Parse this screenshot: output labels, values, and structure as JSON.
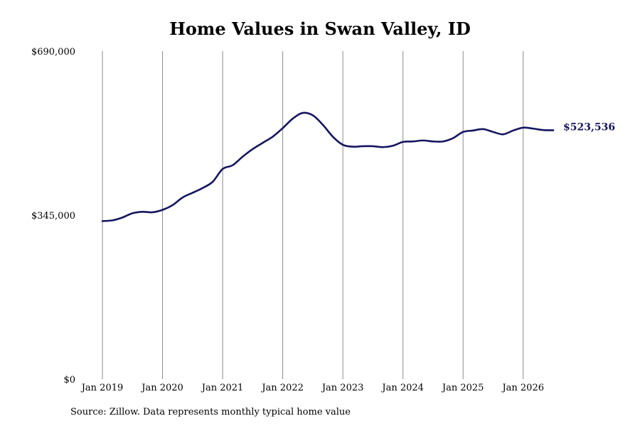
{
  "chart_data": {
    "type": "line",
    "title": "Home Values in Swan Valley, ID",
    "xlabel": "",
    "ylabel": "",
    "x_start": "2019-01",
    "x_end": "2026-07",
    "xlim": [
      "2019-01",
      "2026-07"
    ],
    "ylim": [
      0,
      690000
    ],
    "y_ticks": [
      "$0",
      "$345,000",
      "$690,000"
    ],
    "y_tick_values": [
      0,
      345000,
      690000
    ],
    "x_tick_labels": [
      "Jan 2019",
      "Jan 2020",
      "Jan 2021",
      "Jan 2022",
      "Jan 2023",
      "Jan 2024",
      "Jan 2025",
      "Jan 2026"
    ],
    "x_tick_dates": [
      "2019-01",
      "2020-01",
      "2021-01",
      "2022-01",
      "2023-01",
      "2024-01",
      "2025-01",
      "2026-01"
    ],
    "grid": "vertical",
    "line_color": "#151560",
    "end_label": "$523,536",
    "series": [
      {
        "name": "",
        "points": [
          [
            "2019-01",
            332500
          ],
          [
            "2019-03",
            334000
          ],
          [
            "2019-05",
            340000
          ],
          [
            "2019-07",
            349000
          ],
          [
            "2019-09",
            352000
          ],
          [
            "2019-11",
            351000
          ],
          [
            "2020-01",
            356000
          ],
          [
            "2020-03",
            366000
          ],
          [
            "2020-05",
            382000
          ],
          [
            "2020-07",
            392000
          ],
          [
            "2020-09",
            402000
          ],
          [
            "2020-11",
            415000
          ],
          [
            "2021-01",
            442000
          ],
          [
            "2021-03",
            450000
          ],
          [
            "2021-05",
            468000
          ],
          [
            "2021-07",
            484000
          ],
          [
            "2021-09",
            497000
          ],
          [
            "2021-11",
            510000
          ],
          [
            "2022-01",
            528000
          ],
          [
            "2022-03",
            548000
          ],
          [
            "2022-05",
            560000
          ],
          [
            "2022-07",
            555000
          ],
          [
            "2022-09",
            535000
          ],
          [
            "2022-11",
            510000
          ],
          [
            "2023-01",
            493000
          ],
          [
            "2023-03",
            489000
          ],
          [
            "2023-05",
            490000
          ],
          [
            "2023-07",
            490000
          ],
          [
            "2023-09",
            488000
          ],
          [
            "2023-11",
            491000
          ],
          [
            "2024-01",
            499000
          ],
          [
            "2024-03",
            500000
          ],
          [
            "2024-05",
            502000
          ],
          [
            "2024-07",
            500000
          ],
          [
            "2024-09",
            500000
          ],
          [
            "2024-11",
            507000
          ],
          [
            "2025-01",
            520000
          ],
          [
            "2025-03",
            523000
          ],
          [
            "2025-05",
            526000
          ],
          [
            "2025-07",
            520000
          ],
          [
            "2025-09",
            515000
          ],
          [
            "2025-11",
            523000
          ],
          [
            "2026-01",
            529000
          ],
          [
            "2026-03",
            527000
          ],
          [
            "2026-05",
            524000
          ],
          [
            "2026-07",
            523536
          ]
        ]
      }
    ]
  },
  "source_text": "Source: Zillow. Data represents monthly typical home value"
}
